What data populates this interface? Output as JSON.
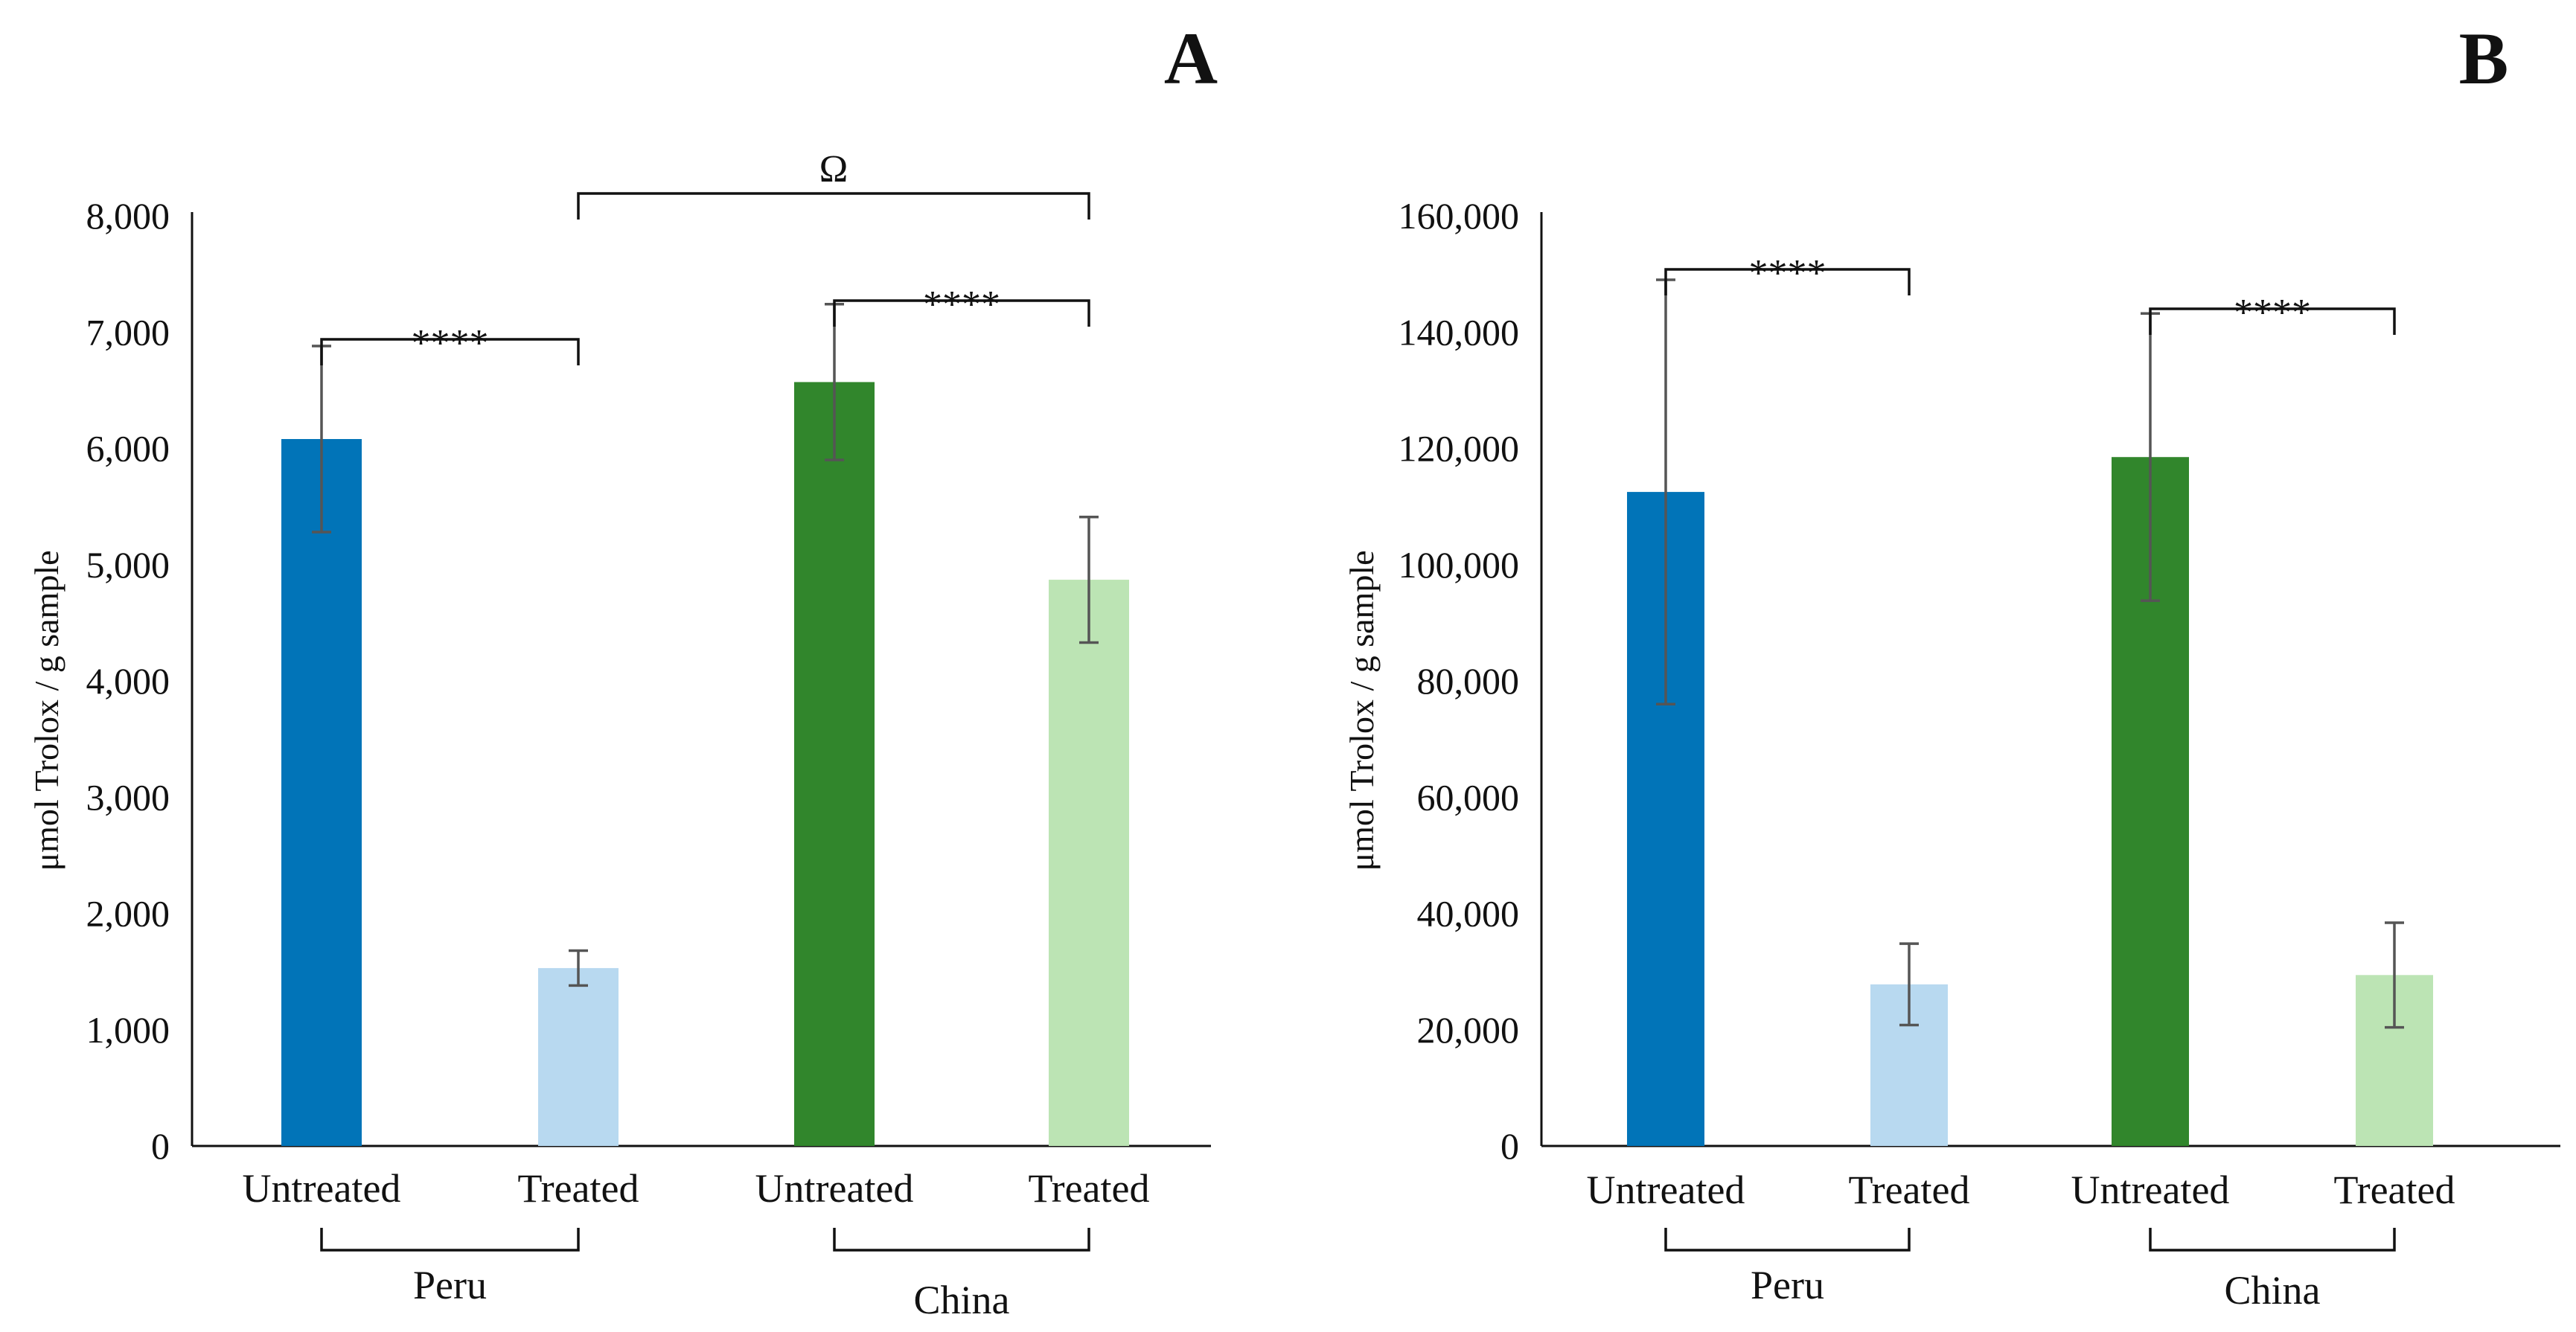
{
  "chart_data": [
    {
      "panel": "A",
      "type": "bar",
      "ylabel": "μmol Trolox / g sample",
      "ylim": [
        0,
        8000
      ],
      "yticks": [
        "0",
        "1,000",
        "2,000",
        "3,000",
        "4,000",
        "5,000",
        "6,000",
        "7,000",
        "8,000"
      ],
      "categories": [
        "Untreated",
        "Treated",
        "Untreated",
        "Treated"
      ],
      "groups": [
        "Peru",
        "China"
      ],
      "values": [
        6080,
        1530,
        6570,
        4870
      ],
      "errors": [
        800,
        150,
        670,
        540
      ],
      "colors": [
        "#0174b8",
        "#b8d9f0",
        "#31862c",
        "#bce4b4"
      ],
      "annotations": [
        {
          "label": "****",
          "from": 0,
          "to": 1
        },
        {
          "label": "****",
          "from": 2,
          "to": 3
        },
        {
          "label": "Ω",
          "from": 1,
          "to": 3
        }
      ]
    },
    {
      "panel": "B",
      "type": "bar",
      "ylabel": "μmol Trolox / g sample",
      "ylim": [
        0,
        160000
      ],
      "yticks": [
        "0",
        "20,000",
        "40,000",
        "60,000",
        "80,000",
        "100,000",
        "120,000",
        "140,000",
        "160,000"
      ],
      "categories": [
        "Untreated",
        "Treated",
        "Untreated",
        "Treated"
      ],
      "groups": [
        "Peru",
        "China"
      ],
      "values": [
        112500,
        27800,
        118500,
        29400
      ],
      "errors": [
        36500,
        7000,
        24700,
        9000
      ],
      "colors": [
        "#0174b8",
        "#b8d9f0",
        "#31862c",
        "#bce4b4"
      ],
      "annotations": [
        {
          "label": "****",
          "from": 0,
          "to": 1
        },
        {
          "label": "****",
          "from": 2,
          "to": 3
        }
      ]
    }
  ]
}
